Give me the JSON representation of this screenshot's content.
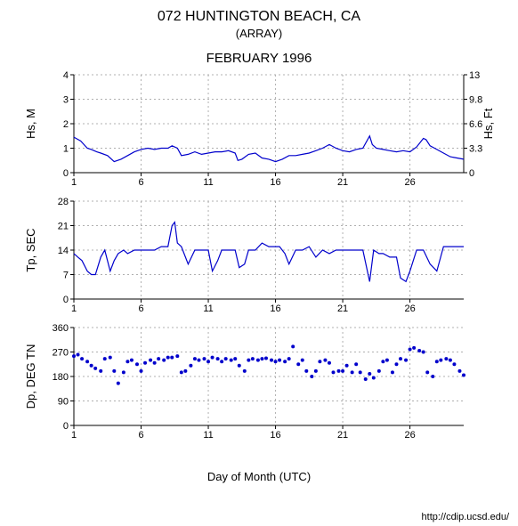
{
  "header": {
    "main": "072 HUNTINGTON BEACH, CA",
    "sub": "(ARRAY)",
    "chart_title": "FEBRUARY 1996"
  },
  "footer": {
    "text": "http://cdip.ucsd.edu/"
  },
  "x_axis": {
    "label": "Day of Month (UTC)",
    "min": 1,
    "max": 30,
    "ticks": [
      1,
      6,
      11,
      16,
      21,
      26
    ],
    "label_fontsize": 13,
    "tick_fontsize": 11
  },
  "colors": {
    "line": "#0000cc",
    "grid": "#b0b0b0",
    "axis": "#000000",
    "bg": "#ffffff",
    "text": "#000000"
  },
  "panels": [
    {
      "id": "hs",
      "type": "line",
      "ylabel_left": "Hs, M",
      "ylabel_right": "Hs, Ft",
      "ylim": [
        0,
        4
      ],
      "yticks_left": [
        0,
        1,
        2,
        3,
        4
      ],
      "yticks_right": [
        0,
        3.3,
        6.6,
        9.8,
        13
      ],
      "label_fontsize": 13,
      "tick_fontsize": 11,
      "height": 110,
      "data_x": [
        1,
        1.5,
        2,
        2.3,
        2.7,
        3,
        3.5,
        4,
        4.5,
        5,
        5.5,
        6,
        6.5,
        7,
        7.5,
        8,
        8.3,
        8.7,
        9,
        9.5,
        10,
        10.5,
        11,
        11.5,
        12,
        12.5,
        13,
        13.2,
        13.5,
        14,
        14.5,
        15,
        15.5,
        16,
        16.5,
        17,
        17.5,
        18,
        18.5,
        19,
        19.5,
        20,
        20.5,
        21,
        21.5,
        22,
        22.5,
        23,
        23.2,
        23.5,
        24,
        24.5,
        25,
        25.5,
        26,
        26.5,
        27,
        27.2,
        27.5,
        28,
        28.5,
        29,
        29.5,
        30
      ],
      "data_y": [
        1.45,
        1.3,
        1.0,
        0.95,
        0.85,
        0.8,
        0.7,
        0.45,
        0.55,
        0.7,
        0.85,
        0.95,
        1.0,
        0.95,
        1.0,
        1.0,
        1.1,
        1.0,
        0.7,
        0.75,
        0.85,
        0.75,
        0.8,
        0.85,
        0.85,
        0.9,
        0.8,
        0.5,
        0.55,
        0.75,
        0.8,
        0.6,
        0.55,
        0.45,
        0.55,
        0.7,
        0.7,
        0.75,
        0.8,
        0.9,
        1.0,
        1.15,
        1.0,
        0.9,
        0.85,
        0.95,
        1.0,
        1.5,
        1.15,
        1.0,
        0.95,
        0.9,
        0.85,
        0.9,
        0.85,
        1.05,
        1.4,
        1.35,
        1.1,
        0.95,
        0.8,
        0.65,
        0.6,
        0.55
      ]
    },
    {
      "id": "tp",
      "type": "line",
      "ylabel_left": "Tp, SEC",
      "ylim": [
        0,
        28
      ],
      "yticks_left": [
        0,
        7,
        14,
        21,
        28
      ],
      "label_fontsize": 13,
      "tick_fontsize": 11,
      "height": 110,
      "data_x": [
        1,
        1.3,
        1.6,
        2,
        2.3,
        2.6,
        3,
        3.3,
        3.7,
        4,
        4.3,
        4.7,
        5,
        5.5,
        6,
        6.5,
        7,
        7.5,
        8,
        8.3,
        8.5,
        8.7,
        9,
        9.5,
        10,
        10.5,
        11,
        11.3,
        11.7,
        12,
        12.5,
        13,
        13.3,
        13.7,
        14,
        14.5,
        15,
        15.5,
        16,
        16.3,
        16.7,
        17,
        17.5,
        18,
        18.5,
        19,
        19.5,
        20,
        20.5,
        21,
        21.5,
        22,
        22.5,
        23,
        23.3,
        23.7,
        24,
        24.5,
        25,
        25.3,
        25.7,
        26,
        26.5,
        27,
        27.5,
        28,
        28.5,
        29,
        29.5,
        30
      ],
      "data_y": [
        13,
        12,
        11,
        8,
        7,
        7,
        12,
        14,
        8,
        11,
        13,
        14,
        13,
        14,
        14,
        14,
        14,
        15,
        15,
        21,
        22,
        16,
        15,
        10,
        14,
        14,
        14,
        8,
        11,
        14,
        14,
        14,
        9,
        10,
        14,
        14,
        16,
        15,
        15,
        15,
        13,
        10,
        14,
        14,
        15,
        12,
        14,
        13,
        14,
        14,
        14,
        14,
        14,
        5,
        14,
        13,
        13,
        12,
        12,
        6,
        5,
        8,
        14,
        14,
        10,
        8,
        15,
        15,
        15,
        15
      ]
    },
    {
      "id": "dp",
      "type": "scatter",
      "ylabel_left": "Dp, DEG TN",
      "ylim": [
        0,
        360
      ],
      "yticks_left": [
        0,
        90,
        180,
        270,
        360
      ],
      "label_fontsize": 13,
      "tick_fontsize": 11,
      "height": 110,
      "marker_size": 2,
      "data_x": [
        1,
        1.3,
        1.6,
        2,
        2.3,
        2.6,
        3,
        3.3,
        3.7,
        4,
        4.3,
        4.7,
        5,
        5.3,
        5.7,
        6,
        6.3,
        6.7,
        7,
        7.3,
        7.7,
        8,
        8.3,
        8.7,
        9,
        9.3,
        9.7,
        10,
        10.3,
        10.7,
        11,
        11.3,
        11.7,
        12,
        12.3,
        12.7,
        13,
        13.3,
        13.7,
        14,
        14.3,
        14.7,
        15,
        15.3,
        15.7,
        16,
        16.3,
        16.7,
        17,
        17.3,
        17.7,
        18,
        18.3,
        18.7,
        19,
        19.3,
        19.7,
        20,
        20.3,
        20.7,
        21,
        21.3,
        21.7,
        22,
        22.3,
        22.7,
        23,
        23.3,
        23.7,
        24,
        24.3,
        24.7,
        25,
        25.3,
        25.7,
        26,
        26.3,
        26.7,
        27,
        27.3,
        27.7,
        28,
        28.3,
        28.7,
        29,
        29.3,
        29.7,
        30
      ],
      "data_y": [
        255,
        260,
        245,
        235,
        220,
        210,
        200,
        245,
        250,
        200,
        155,
        195,
        235,
        240,
        225,
        200,
        230,
        240,
        230,
        245,
        240,
        250,
        250,
        255,
        195,
        200,
        220,
        245,
        240,
        245,
        235,
        250,
        245,
        235,
        245,
        240,
        245,
        220,
        200,
        240,
        245,
        240,
        245,
        247,
        240,
        235,
        240,
        235,
        245,
        290,
        225,
        240,
        200,
        180,
        200,
        235,
        240,
        230,
        195,
        200,
        200,
        220,
        195,
        225,
        195,
        170,
        190,
        175,
        200,
        235,
        240,
        195,
        225,
        245,
        240,
        280,
        285,
        275,
        270,
        195,
        180,
        235,
        240,
        245,
        240,
        225,
        200,
        185
      ]
    }
  ]
}
